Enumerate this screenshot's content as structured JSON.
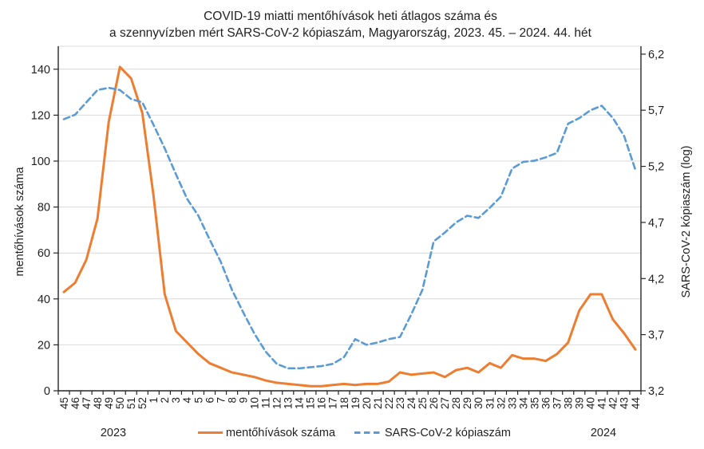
{
  "title": {
    "line1": "COVID-19 miatti mentőhívások heti átlagos száma és",
    "line2": "a szennyvízben mért SARS-CoV-2 kópiaszám, Magyarország, 2023. 45. – 2024. 44. hét"
  },
  "x_axis": {
    "year_left": "2023",
    "year_right": "2024"
  },
  "legend": {
    "items": [
      {
        "label": "mentőhívások száma",
        "color": "#ED7D31",
        "dash": "none"
      },
      {
        "label": "SARS-CoV-2 kópiaszám",
        "color": "#5B9BD5",
        "dash": "7.5 4.5"
      }
    ]
  },
  "colors": {
    "ambulance_line": "#ED7D31",
    "sars_line": "#5B9BD5",
    "gridline": "#D9D9D9",
    "axis": "#262626"
  },
  "chart_data": {
    "type": "line",
    "title": "COVID-19 miatti mentőhívások heti átlagos száma és a szennyvízben mért SARS-CoV-2 kópiaszám, Magyarország, 2023. 45. – 2024. 44. hét",
    "grid": true,
    "legend_position": "bottom",
    "categories": [
      "45",
      "46",
      "47",
      "48",
      "49",
      "50",
      "51",
      "52",
      "1",
      "2",
      "3",
      "4",
      "5",
      "6",
      "7",
      "8",
      "9",
      "10",
      "11",
      "12",
      "13",
      "14",
      "15",
      "16",
      "17",
      "18",
      "19",
      "20",
      "21",
      "22",
      "23",
      "24",
      "25",
      "26",
      "27",
      "28",
      "29",
      "30",
      "31",
      "32",
      "33",
      "34",
      "35",
      "36",
      "37",
      "38",
      "39",
      "40",
      "41",
      "42",
      "43",
      "44"
    ],
    "category_years": {
      "2023_weeks": "45–52",
      "2024_weeks": "1–44"
    },
    "left_axis": {
      "label": "mentőhívások száma",
      "range": [
        0,
        150
      ],
      "ticks": [
        0,
        20,
        40,
        60,
        80,
        100,
        120,
        140
      ]
    },
    "right_axis": {
      "label": "SARS-CoV-2 kópiaszám (log)",
      "range": [
        3.2,
        6.27
      ],
      "ticks": [
        3.2,
        3.7,
        4.2,
        4.7,
        5.2,
        5.7,
        6.2
      ],
      "tick_labels": [
        "3,2",
        "3,7",
        "4,2",
        "4,7",
        "5,2",
        "5,7",
        "6,2"
      ]
    },
    "series": [
      {
        "name": "mentőhívások száma",
        "axis": "left",
        "color": "#ED7D31",
        "style": "solid",
        "values": [
          43,
          47,
          57,
          75,
          117,
          141,
          136,
          121,
          85,
          42,
          26,
          21,
          16,
          12,
          10,
          8,
          7,
          6,
          4.5,
          3.5,
          3,
          2.5,
          2,
          2,
          2.5,
          3,
          2.5,
          3,
          3,
          4,
          8,
          7,
          7.5,
          8,
          6,
          9,
          10,
          8,
          12,
          10,
          15.5,
          14,
          14,
          13,
          16,
          21,
          35,
          42,
          42,
          31,
          25,
          18
        ]
      },
      {
        "name": "SARS-CoV-2 kópiaszám",
        "axis": "right",
        "color": "#5B9BD5",
        "style": "dashed",
        "values": [
          5.62,
          5.66,
          5.77,
          5.88,
          5.9,
          5.88,
          5.8,
          5.77,
          5.57,
          5.36,
          5.13,
          4.91,
          4.76,
          4.55,
          4.35,
          4.1,
          3.9,
          3.71,
          3.55,
          3.44,
          3.4,
          3.4,
          3.41,
          3.42,
          3.44,
          3.5,
          3.66,
          3.61,
          3.63,
          3.66,
          3.68,
          3.88,
          4.1,
          4.53,
          4.61,
          4.7,
          4.76,
          4.74,
          4.83,
          4.93,
          5.18,
          5.24,
          5.25,
          5.28,
          5.32,
          5.58,
          5.63,
          5.7,
          5.74,
          5.63,
          5.47,
          5.17
        ]
      }
    ]
  }
}
